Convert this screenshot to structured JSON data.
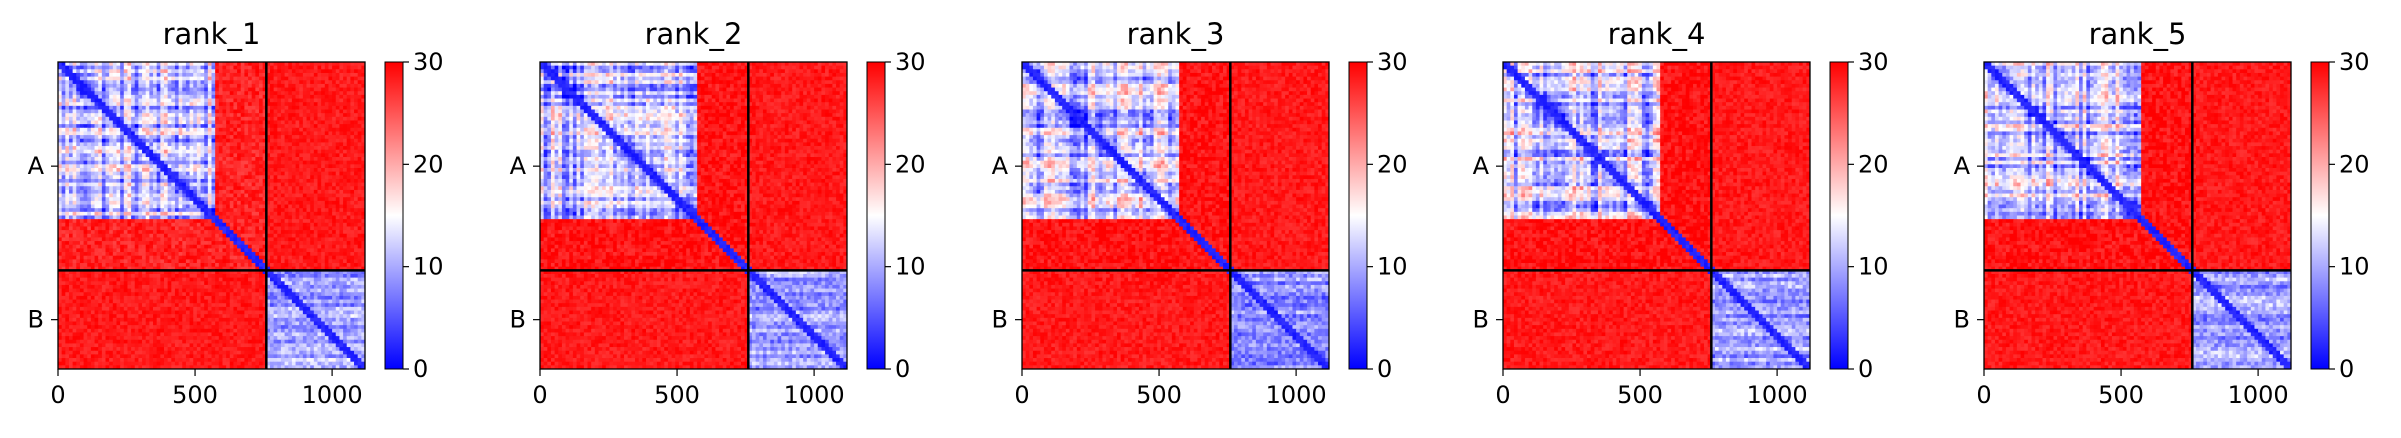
{
  "colors": {
    "low": "#0000ff",
    "mid": "#ffffff",
    "high": "#ff0000",
    "divider": "#000000"
  },
  "chart_data": [
    {
      "type": "heatmap",
      "title": "rank_1",
      "x_range": [
        0,
        1120
      ],
      "x_ticks": [
        0,
        500,
        1000
      ],
      "y_tick_labels": [
        "A",
        "B"
      ],
      "chain_boundary": 760,
      "colorbar": {
        "range": [
          0,
          30
        ],
        "ticks": [
          0,
          10,
          20,
          30
        ]
      },
      "colormap": "bwr",
      "blocks": {
        "A_domain_end": 580,
        "A_domain_mean": 12,
        "A_linker_mean": 28,
        "inter_chain_mean": 30,
        "B_domain_mean": 10
      }
    },
    {
      "type": "heatmap",
      "title": "rank_2",
      "x_range": [
        0,
        1120
      ],
      "x_ticks": [
        0,
        500,
        1000
      ],
      "y_tick_labels": [
        "A",
        "B"
      ],
      "chain_boundary": 760,
      "colorbar": {
        "range": [
          0,
          30
        ],
        "ticks": [
          0,
          10,
          20,
          30
        ]
      },
      "colormap": "bwr",
      "blocks": {
        "A_domain_end": 580,
        "A_domain_mean": 11,
        "A_linker_mean": 29,
        "inter_chain_mean": 30,
        "B_domain_mean": 9
      }
    },
    {
      "type": "heatmap",
      "title": "rank_3",
      "x_range": [
        0,
        1120
      ],
      "x_ticks": [
        0,
        500,
        1000
      ],
      "y_tick_labels": [
        "A",
        "B"
      ],
      "chain_boundary": 760,
      "colorbar": {
        "range": [
          0,
          30
        ],
        "ticks": [
          0,
          10,
          20,
          30
        ]
      },
      "colormap": "bwr",
      "blocks": {
        "A_domain_end": 580,
        "A_domain_mean": 11,
        "A_linker_mean": 29,
        "inter_chain_mean": 30,
        "B_domain_mean": 9
      }
    },
    {
      "type": "heatmap",
      "title": "rank_4",
      "x_range": [
        0,
        1120
      ],
      "x_ticks": [
        0,
        500,
        1000
      ],
      "y_tick_labels": [
        "A",
        "B"
      ],
      "chain_boundary": 760,
      "colorbar": {
        "range": [
          0,
          30
        ],
        "ticks": [
          0,
          10,
          20,
          30
        ]
      },
      "colormap": "bwr",
      "blocks": {
        "A_domain_end": 580,
        "A_domain_mean": 12,
        "A_linker_mean": 29,
        "inter_chain_mean": 30,
        "B_domain_mean": 9
      }
    },
    {
      "type": "heatmap",
      "title": "rank_5",
      "x_range": [
        0,
        1120
      ],
      "x_ticks": [
        0,
        500,
        1000
      ],
      "y_tick_labels": [
        "A",
        "B"
      ],
      "chain_boundary": 760,
      "colorbar": {
        "range": [
          0,
          30
        ],
        "ticks": [
          0,
          10,
          20,
          30
        ]
      },
      "colormap": "bwr",
      "blocks": {
        "A_domain_end": 580,
        "A_domain_mean": 12,
        "A_linker_mean": 29,
        "inter_chain_mean": 30,
        "B_domain_mean": 9
      }
    }
  ]
}
